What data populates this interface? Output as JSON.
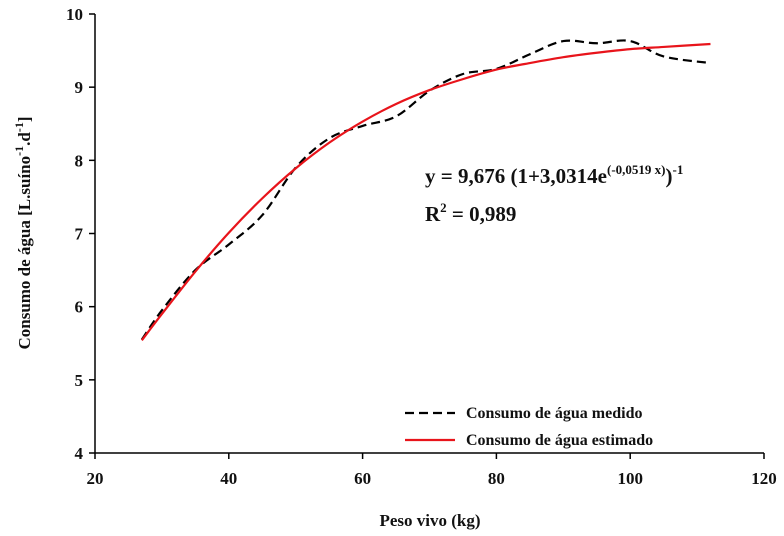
{
  "chart_data": {
    "type": "line",
    "x_label": "Peso vivo (kg)",
    "y_label": [
      "Consumo de água [L.suíno",
      "-1",
      ".d",
      "-1",
      "]"
    ],
    "equation": [
      "y = 9,676 (1+3,0314e",
      "(-0,0519 x)",
      ")",
      "-1"
    ],
    "r_squared": [
      "R",
      "2",
      " = 0,989"
    ],
    "x": [
      27,
      30,
      35,
      40,
      45,
      50,
      55,
      60,
      65,
      70,
      75,
      80,
      85,
      90,
      95,
      100,
      105,
      112
    ],
    "series": [
      {
        "name": "Consumo de água medido",
        "color": "#000000",
        "dashed": true,
        "values": [
          5.55,
          5.95,
          6.5,
          6.85,
          7.25,
          7.9,
          8.3,
          8.47,
          8.6,
          8.95,
          9.18,
          9.25,
          9.45,
          9.63,
          9.6,
          9.63,
          9.42,
          9.33
        ]
      },
      {
        "name": "Consumo de água estimado",
        "color": "#e8141b",
        "dashed": false,
        "values": [
          5.54,
          5.9,
          6.48,
          7.01,
          7.48,
          7.89,
          8.24,
          8.53,
          8.77,
          8.96,
          9.11,
          9.24,
          9.33,
          9.41,
          9.47,
          9.52,
          9.55,
          9.59
        ]
      }
    ],
    "xlim": [
      20,
      120
    ],
    "xticks": [
      20,
      40,
      60,
      80,
      100,
      120
    ],
    "ylim": [
      4,
      10
    ],
    "yticks": [
      4,
      5,
      6,
      7,
      8,
      9,
      10
    ],
    "grid": false
  }
}
